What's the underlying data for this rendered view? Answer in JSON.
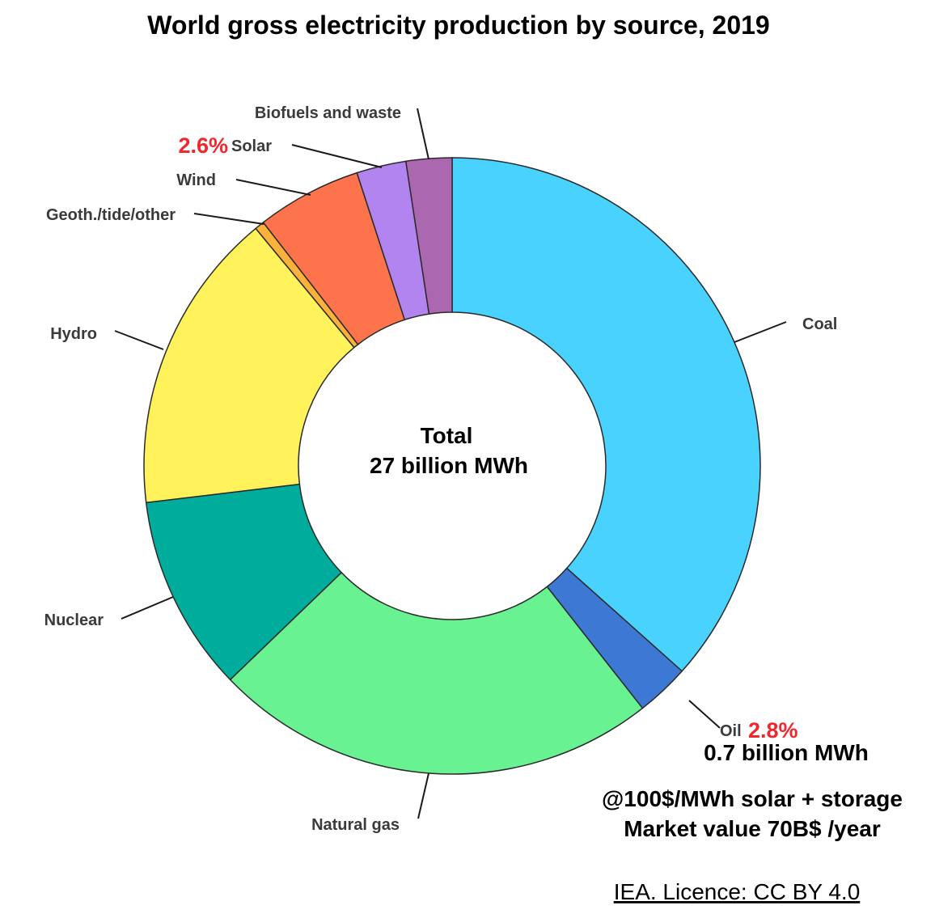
{
  "chart_data": {
    "type": "pie",
    "variant": "donut",
    "title": "World gross electricity production by source, 2019",
    "center_label": [
      "Total",
      "27 billion MWh"
    ],
    "slices": [
      {
        "name": "Coal",
        "value": 36.6,
        "color": "#4ad2fe"
      },
      {
        "name": "Oil",
        "value": 2.8,
        "color": "#3d78d4"
      },
      {
        "name": "Natural gas",
        "value": 23.4,
        "color": "#69f292"
      },
      {
        "name": "Nuclear",
        "value": 10.3,
        "color": "#00ac9c"
      },
      {
        "name": "Hydro",
        "value": 15.9,
        "color": "#fff25a"
      },
      {
        "name": "Geoth./tide/other",
        "value": 0.5,
        "color": "#fbb13a"
      },
      {
        "name": "Wind",
        "value": 5.5,
        "color": "#fd734b"
      },
      {
        "name": "Solar",
        "value": 2.6,
        "color": "#b184ef"
      },
      {
        "name": "Biofuels and waste",
        "value": 2.4,
        "color": "#ab68b0"
      }
    ],
    "unit": "% of total",
    "annotations": {
      "solar_pct": "2.6%",
      "oil_pct": "2.8%",
      "oil_amount": "0.7 billion MWh",
      "note_line1": "@100$/MWh solar + storage",
      "note_line2": "Market value 70B$ /year",
      "highlight_color": "#f0282d"
    },
    "source": "IEA. Licence: CC BY 4.0"
  }
}
